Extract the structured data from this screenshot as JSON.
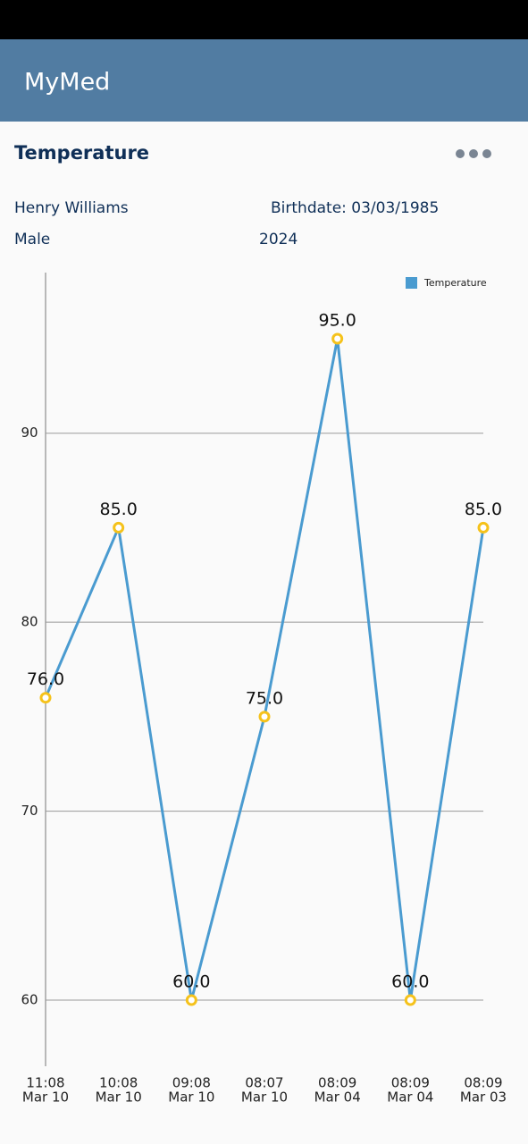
{
  "app_bar": {
    "title": "MyMed"
  },
  "card": {
    "title": "Temperature",
    "name": "Henry Williams",
    "birthdate": "Birthdate: 03/03/1985",
    "sex": "Male",
    "year": "2024"
  },
  "chart_data": {
    "type": "line",
    "categories": [
      [
        "11:08",
        "Mar 10"
      ],
      [
        "10:08",
        "Mar 10"
      ],
      [
        "09:08",
        "Mar 10"
      ],
      [
        "08:07",
        "Mar 10"
      ],
      [
        "08:09",
        "Mar 04"
      ],
      [
        "08:09",
        "Mar 04"
      ],
      [
        "08:09",
        "Mar 03"
      ]
    ],
    "series": [
      {
        "name": "Temperature",
        "color": "#4a9bd0",
        "marker_color": "#f5c21b",
        "values": [
          76,
          85,
          60,
          75,
          95,
          60,
          85
        ],
        "value_labels": [
          "76.0",
          "85.0",
          "60.0",
          "75.0",
          "95.0",
          "60.0",
          "85.0"
        ]
      }
    ],
    "ylim": [
      56.5,
      98.5
    ],
    "yticks": [
      60,
      70,
      80,
      90
    ],
    "grid": true,
    "legend": "top-right"
  }
}
